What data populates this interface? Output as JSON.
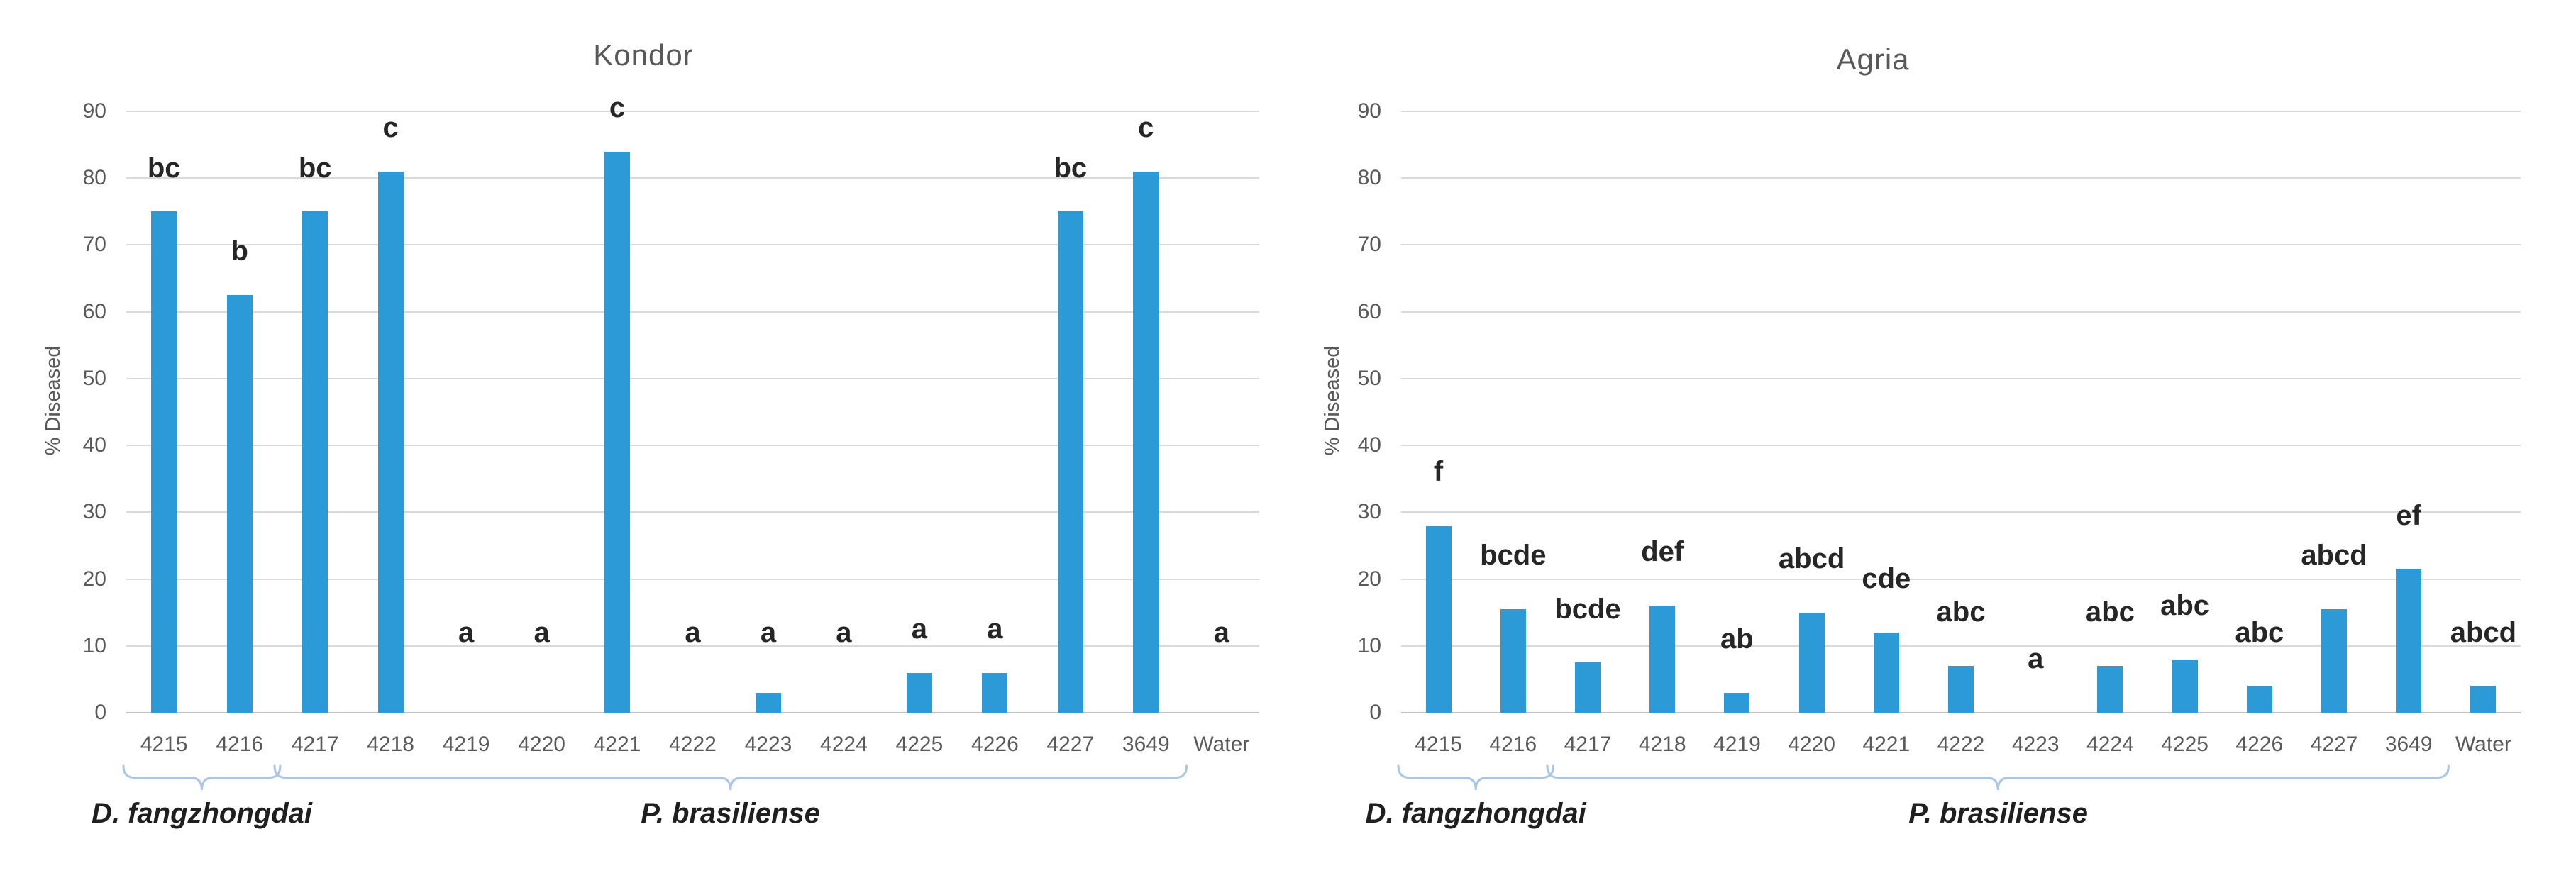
{
  "page": {
    "background": "#ffffff"
  },
  "colors": {
    "bar": "#2B9AD6",
    "bracket": "#A9C6E8",
    "gridline": "#D9D9D9",
    "axis_line": "#BFBFBF",
    "tick_text": "#595959",
    "title_text": "#595959",
    "letter_text": "#262626",
    "group_text": "#1F1F1F"
  },
  "chart_data": [
    {
      "type": "bar",
      "title": "Kondor",
      "ylabel": "% Diseased",
      "ylim": [
        0,
        90
      ],
      "ytick_step": 10,
      "grid": true,
      "legend": "none",
      "categories": [
        "4215",
        "4216",
        "4217",
        "4218",
        "4219",
        "4220",
        "4221",
        "4222",
        "4223",
        "4224",
        "4225",
        "4226",
        "4227",
        "3649",
        "Water"
      ],
      "values": [
        75,
        62.5,
        75,
        81,
        0,
        0,
        84,
        0,
        3,
        0,
        6,
        6,
        75,
        81,
        0
      ],
      "sig_letters": [
        "bc",
        "b",
        "bc",
        "c",
        "a",
        "a",
        "c",
        "a",
        "a",
        "a",
        "a",
        "a",
        "bc",
        "c",
        "a"
      ],
      "groups": [
        {
          "label": "D. fangzhongdai",
          "start": 0,
          "end": 1
        },
        {
          "label": "P. brasiliense",
          "start": 2,
          "end": 13
        }
      ]
    },
    {
      "type": "bar",
      "title": "Agria",
      "ylabel": "% Diseased",
      "ylim": [
        0,
        90
      ],
      "ytick_step": 10,
      "grid": true,
      "legend": "none",
      "categories": [
        "4215",
        "4216",
        "4217",
        "4218",
        "4219",
        "4220",
        "4221",
        "4222",
        "4223",
        "4224",
        "4225",
        "4226",
        "4227",
        "3649",
        "Water"
      ],
      "values": [
        28,
        15.5,
        7.5,
        16,
        3,
        15,
        12,
        7,
        0,
        7,
        8,
        4,
        15.5,
        21.5,
        4
      ],
      "sig_letters": [
        "f",
        "bcde",
        "bcde",
        "def",
        "ab",
        "abcd",
        "cde",
        "abc",
        "a",
        "abc",
        "abc",
        "abc",
        "abcd",
        "ef",
        "abcd"
      ],
      "groups": [
        {
          "label": "D. fangzhongdai",
          "start": 0,
          "end": 1
        },
        {
          "label": "P. brasiliense",
          "start": 2,
          "end": 13
        }
      ]
    }
  ]
}
